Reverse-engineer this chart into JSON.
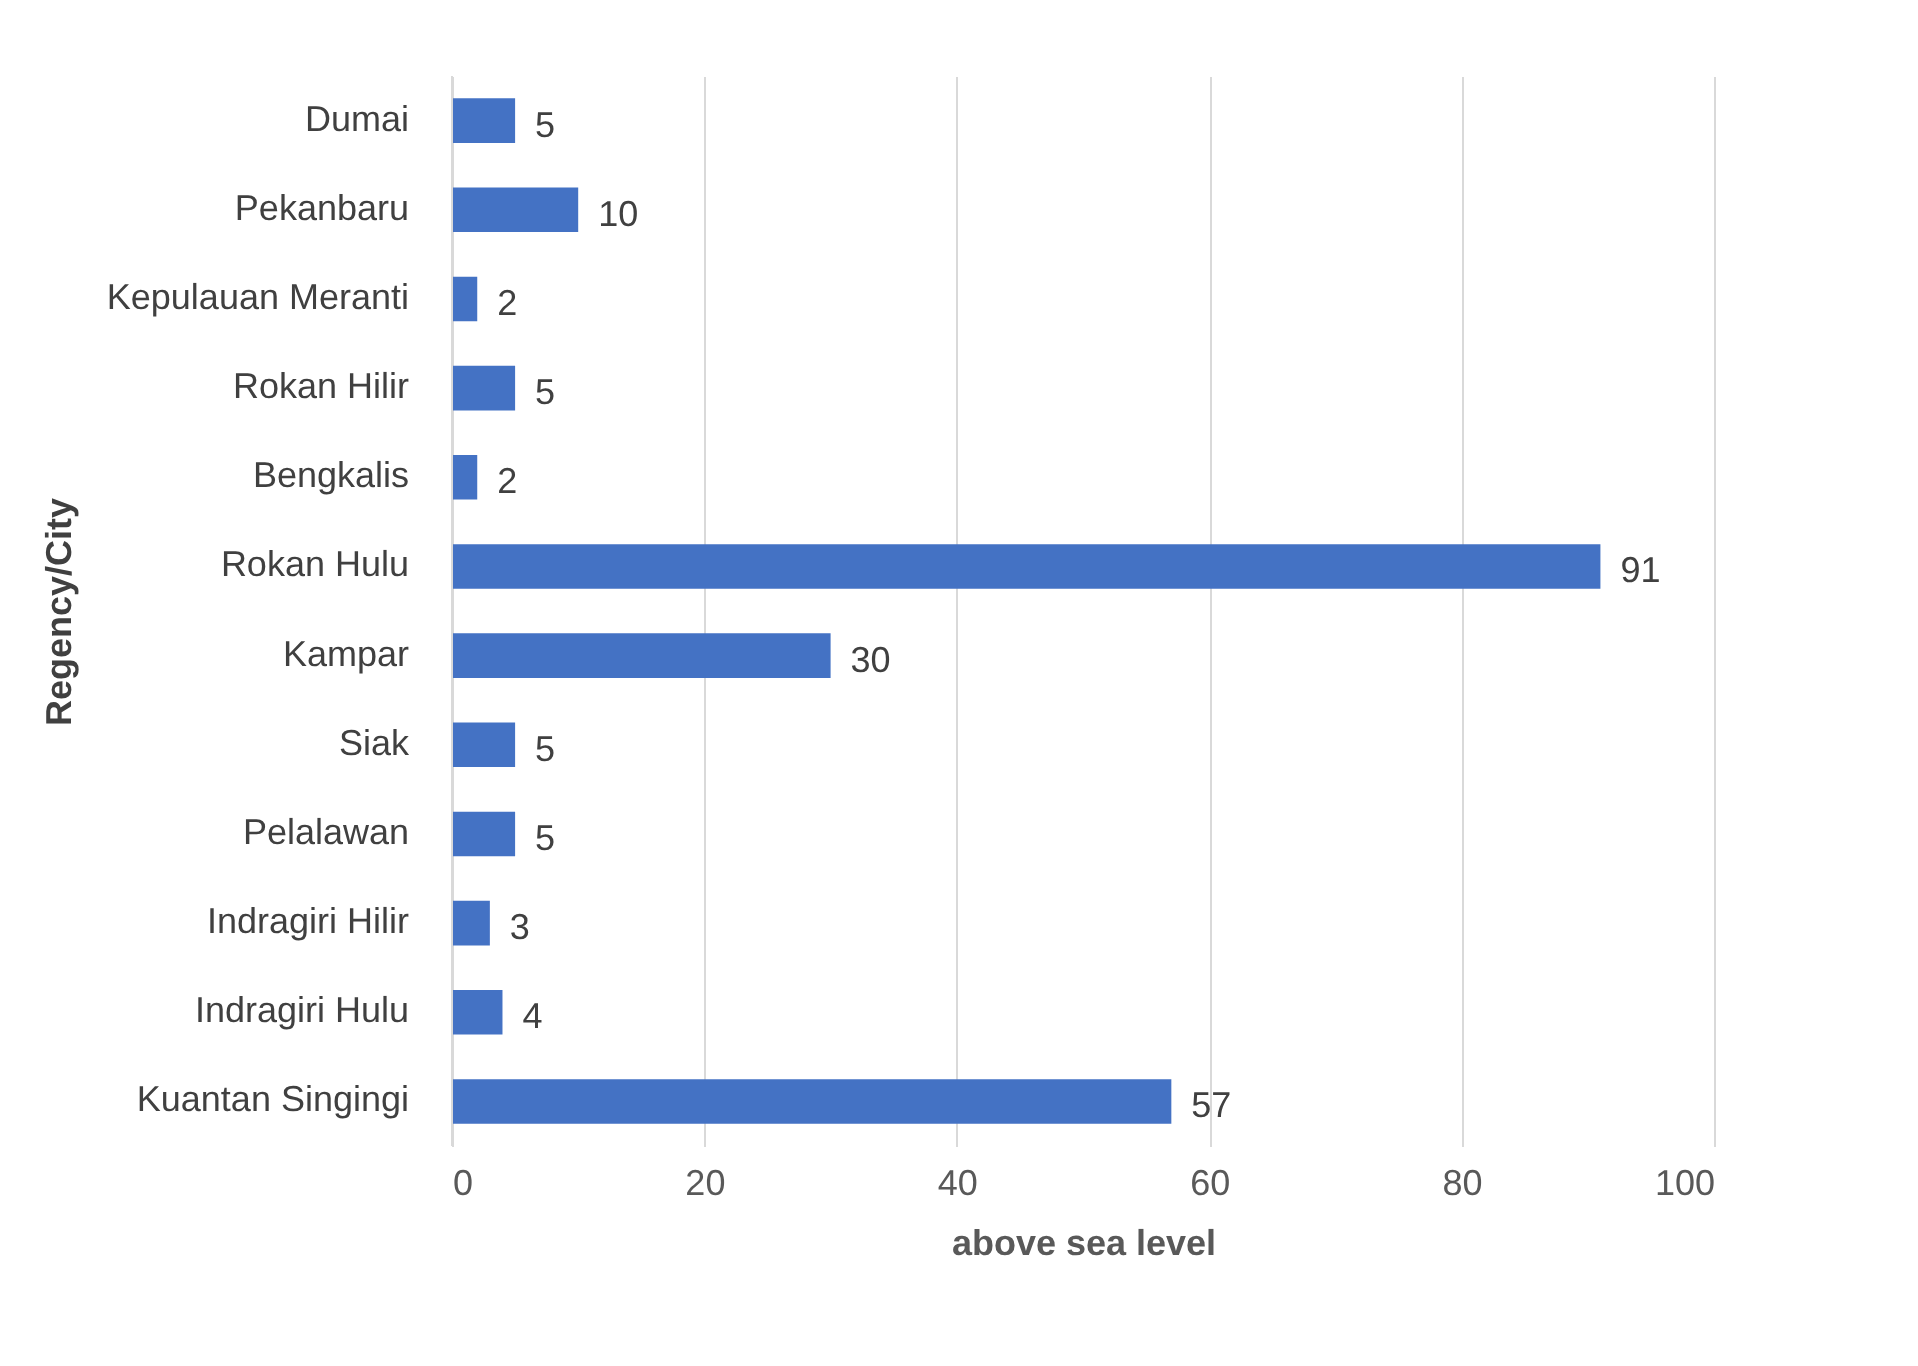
{
  "chart_data": {
    "type": "bar",
    "orientation": "horizontal",
    "xlabel": "above sea level",
    "ylabel": "Regency/City",
    "categories": [
      "Dumai",
      "Pekanbaru",
      "Kepulauan Meranti",
      "Rokan Hilir",
      "Bengkalis",
      "Rokan Hulu",
      "Kampar",
      "Siak",
      "Pelalawan",
      "Indragiri Hilir",
      "Indragiri Hulu",
      "Kuantan Singingi"
    ],
    "values": [
      5,
      10,
      2,
      5,
      2,
      91,
      30,
      5,
      5,
      3,
      4,
      57
    ],
    "color": "#4472c4",
    "xlim": [
      0,
      100
    ],
    "xticks": [
      0,
      20,
      40,
      60,
      80,
      100
    ],
    "grid": "x",
    "data_labels": true
  }
}
